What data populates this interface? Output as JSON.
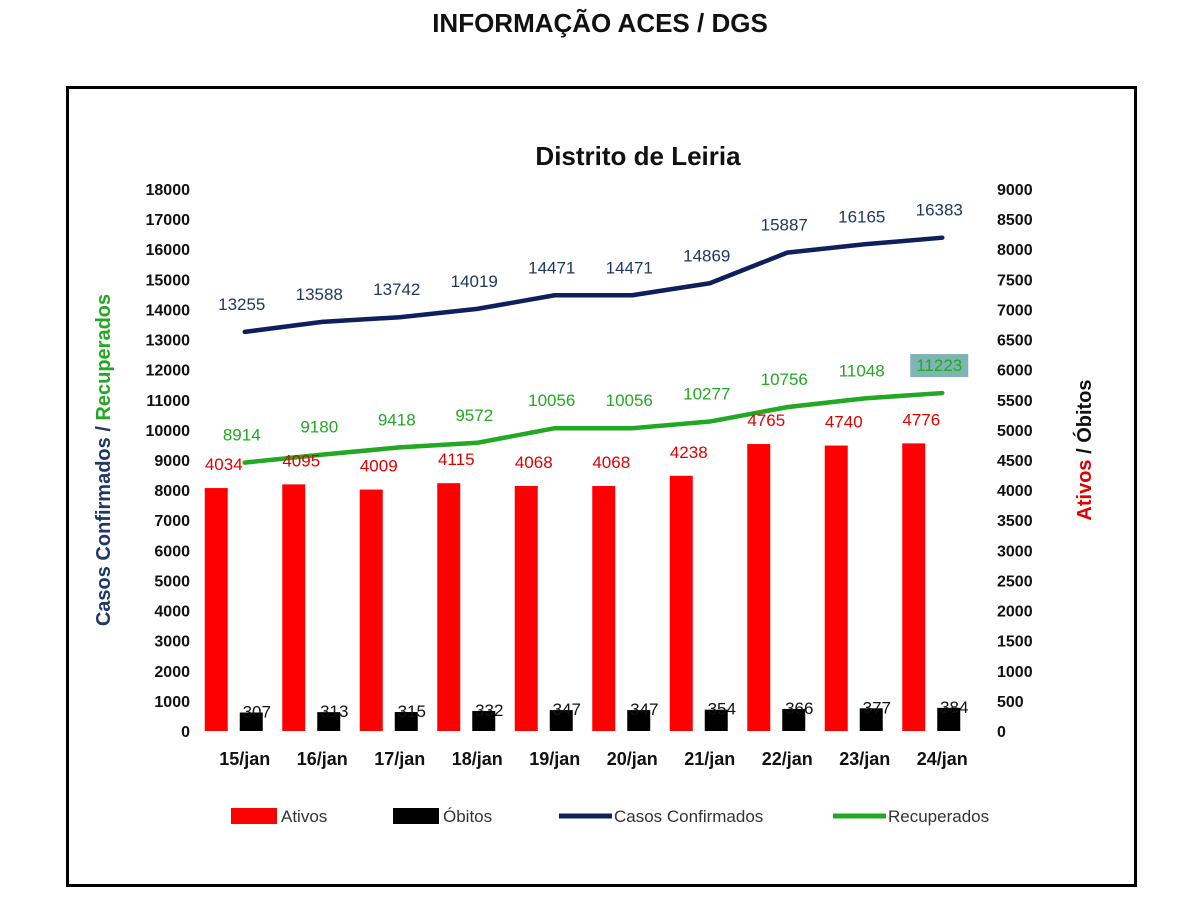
{
  "page_title": "INFORMAÇÃO ACES / DGS",
  "chart_data": {
    "type": "bar",
    "title": "Distrito de Leiria",
    "categories": [
      "15/jan",
      "16/jan",
      "17/jan",
      "18/jan",
      "19/jan",
      "20/jan",
      "21/jan",
      "22/jan",
      "23/jan",
      "24/jan"
    ],
    "y_left": {
      "label_parts": [
        {
          "text": "Casos Confirmados",
          "color": "#1f3864"
        },
        {
          "text": " / ",
          "color": "#1f3864"
        },
        {
          "text": "Recuperados",
          "color": "#22a822"
        }
      ],
      "range": [
        0,
        18000
      ],
      "ticks": [
        0,
        1000,
        2000,
        3000,
        4000,
        5000,
        6000,
        7000,
        8000,
        9000,
        10000,
        11000,
        12000,
        13000,
        14000,
        15000,
        16000,
        17000,
        18000
      ]
    },
    "y_right": {
      "label_parts": [
        {
          "text": "Ativos",
          "color": "#e00000"
        },
        {
          "text": " / ",
          "color": "#111111"
        },
        {
          "text": "Óbitos",
          "color": "#111111"
        }
      ],
      "range": [
        0,
        9000
      ],
      "ticks": [
        0,
        500,
        1000,
        1500,
        2000,
        2500,
        3000,
        3500,
        4000,
        4500,
        5000,
        5500,
        6000,
        6500,
        7000,
        7500,
        8000,
        8500,
        9000
      ]
    },
    "series": [
      {
        "name": "Ativos",
        "type": "bar",
        "axis": "right",
        "color": "#ff0000",
        "label_color": "#e00000",
        "values": [
          4034,
          4095,
          4009,
          4115,
          4068,
          4068,
          4238,
          4765,
          4740,
          4776
        ]
      },
      {
        "name": "Óbitos",
        "type": "bar",
        "axis": "right",
        "color": "#000000",
        "label_color": "#111111",
        "values": [
          307,
          313,
          315,
          332,
          347,
          347,
          354,
          366,
          377,
          384
        ]
      },
      {
        "name": "Casos Confirmados",
        "type": "line",
        "axis": "left",
        "color": "#0d1f5c",
        "label_color": "#1f3864",
        "values": [
          13255,
          13588,
          13742,
          14019,
          14471,
          14471,
          14869,
          15887,
          16165,
          16383
        ]
      },
      {
        "name": "Recuperados",
        "type": "line",
        "axis": "left",
        "color": "#22a822",
        "label_color": "#22a822",
        "values": [
          8914,
          9180,
          9418,
          9572,
          10056,
          10056,
          10277,
          10756,
          11048,
          11223
        ]
      }
    ],
    "highlighted_label": {
      "series": "Recuperados",
      "index": 9,
      "background": "#7fb4b4"
    },
    "legend": {
      "position": "bottom",
      "entries": [
        "Ativos",
        "Óbitos",
        "Casos Confirmados",
        "Recuperados"
      ]
    },
    "grid": false
  }
}
